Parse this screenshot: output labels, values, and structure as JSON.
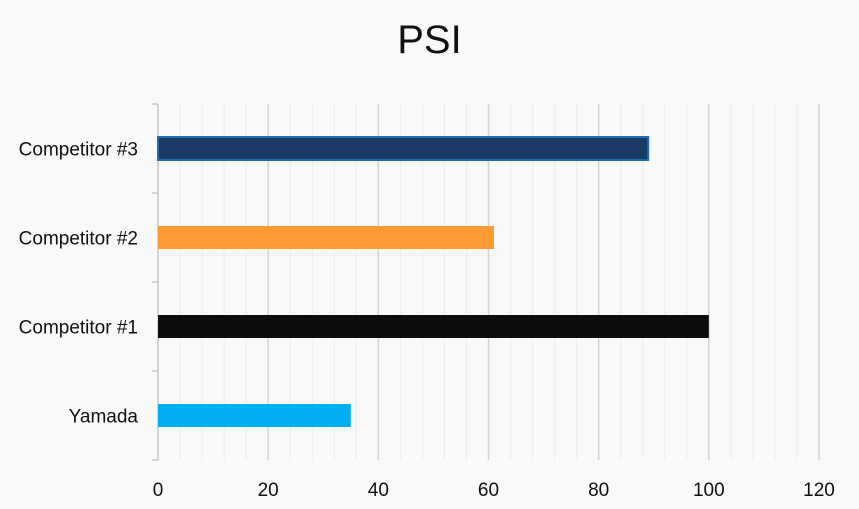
{
  "chart_data": {
    "type": "bar",
    "orientation": "horizontal",
    "title": "PSI",
    "xlabel": "",
    "ylabel": "",
    "categories": [
      "Yamada",
      "Competitor #1",
      "Competitor #2",
      "Competitor #3"
    ],
    "values": [
      35,
      100,
      61,
      89
    ],
    "colors": [
      "#00b0f0",
      "#0d0d0d",
      "#ff9933",
      "#1b3a63"
    ],
    "xlim": [
      0,
      120
    ],
    "xticks": [
      "0",
      "20",
      "40",
      "60",
      "80",
      "100",
      "120"
    ],
    "grid": true,
    "legend": "none"
  }
}
